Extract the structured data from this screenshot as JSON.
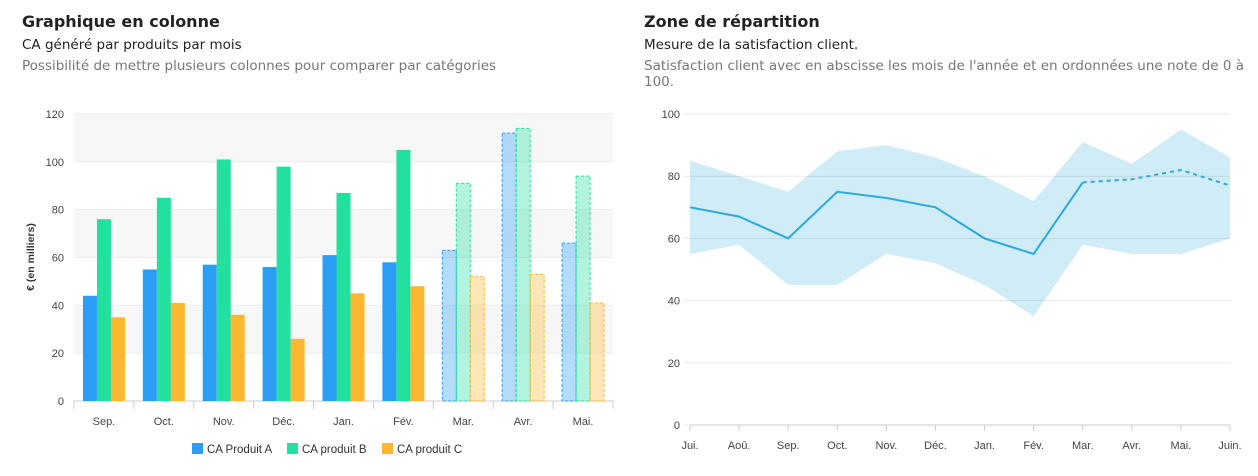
{
  "left": {
    "title": "Graphique en colonne",
    "subtitle": "CA généré par produits par mois",
    "description": "Possibilité de mettre plusieurs colonnes pour comparer par catégories"
  },
  "right": {
    "title": "Zone de répartition",
    "subtitle": "Mesure de la satisfaction client.",
    "description": "Satisfaction client avec en abscisse les mois de l'année et en ordonnées une note de 0 à 100."
  },
  "chart_data": [
    {
      "type": "bar",
      "ylabel": "€ (en milliers)",
      "ylim": [
        0,
        120
      ],
      "yticks": [
        0,
        20,
        40,
        60,
        80,
        100,
        120
      ],
      "grid": true,
      "legend": "bottom",
      "categories": [
        "Sep.",
        "Oct.",
        "Nov.",
        "Déc.",
        "Jan.",
        "Fév.",
        "Mar.",
        "Avr.",
        "Mai."
      ],
      "forecast_from_index": 6,
      "series": [
        {
          "name": "CA Produit A",
          "color": "#2a9df4",
          "values": [
            44,
            55,
            57,
            56,
            61,
            58,
            63,
            112,
            66
          ]
        },
        {
          "name": "CA produit B",
          "color": "#22e09e",
          "values": [
            76,
            85,
            101,
            98,
            87,
            105,
            91,
            114,
            94
          ]
        },
        {
          "name": "CA produit C",
          "color": "#fbb730",
          "values": [
            35,
            41,
            36,
            26,
            45,
            48,
            52,
            53,
            41
          ]
        }
      ]
    },
    {
      "type": "area",
      "ylim": [
        0,
        100
      ],
      "yticks": [
        0,
        20,
        40,
        60,
        80,
        100
      ],
      "grid": true,
      "categories": [
        "Jui.",
        "Aoû.",
        "Sep.",
        "Oct.",
        "Nov.",
        "Déc.",
        "Jan.",
        "Fév.",
        "Mar.",
        "Avr.",
        "Mai.",
        "Juin."
      ],
      "forecast_from_index": 8,
      "line_color": "#2aaadc",
      "band_color": "#cdebf7",
      "mean": [
        70,
        67,
        60,
        75,
        73,
        70,
        60,
        55,
        78,
        79,
        82,
        77
      ],
      "low": [
        55,
        58,
        45,
        45,
        55,
        52,
        45,
        35,
        58,
        55,
        55,
        60
      ],
      "high": [
        85,
        80,
        75,
        88,
        90,
        86,
        80,
        72,
        91,
        84,
        95,
        86
      ]
    }
  ]
}
